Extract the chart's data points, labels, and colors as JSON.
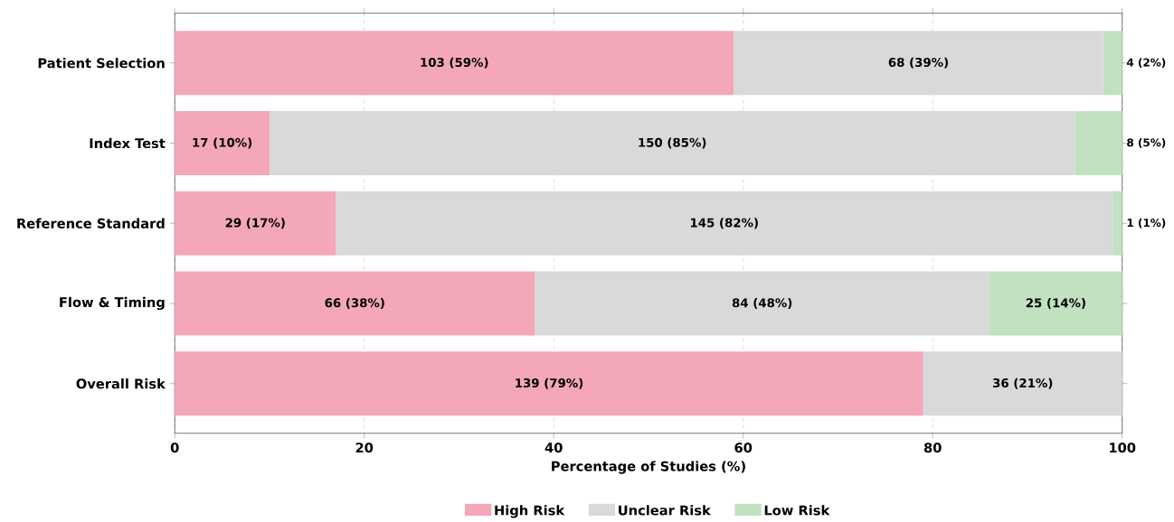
{
  "chart_data": {
    "type": "bar",
    "orientation": "horizontal",
    "stacked": true,
    "categories": [
      "Patient Selection",
      "Index Test",
      "Reference Standard",
      "Flow & Timing",
      "Overall Risk"
    ],
    "series": [
      {
        "name": "High Risk",
        "color": "#f4a7b9",
        "values": [
          59,
          10,
          17,
          38,
          79
        ],
        "value_labels": [
          "103 (59%)",
          "17 (10%)",
          "29 (17%)",
          "66 (38%)",
          "139 (79%)"
        ]
      },
      {
        "name": "Unclear Risk",
        "color": "#d9d9d9",
        "values": [
          39,
          85,
          82,
          48,
          21
        ],
        "value_labels": [
          "68 (39%)",
          "150 (85%)",
          "145 (82%)",
          "84 (48%)",
          "36 (21%)"
        ]
      },
      {
        "name": "Low Risk",
        "color": "#c1e1c1",
        "values": [
          2,
          5,
          1,
          14,
          0
        ],
        "value_labels": [
          "4 (2%)",
          "8 (5%)",
          "1 (1%)",
          "25 (14%)",
          null
        ]
      }
    ],
    "xlabel": "Percentage of Studies (%)",
    "xlim": [
      0,
      100
    ],
    "xticks": [
      0,
      20,
      40,
      60,
      80,
      100
    ],
    "grid": "x",
    "legend": "bottom"
  }
}
